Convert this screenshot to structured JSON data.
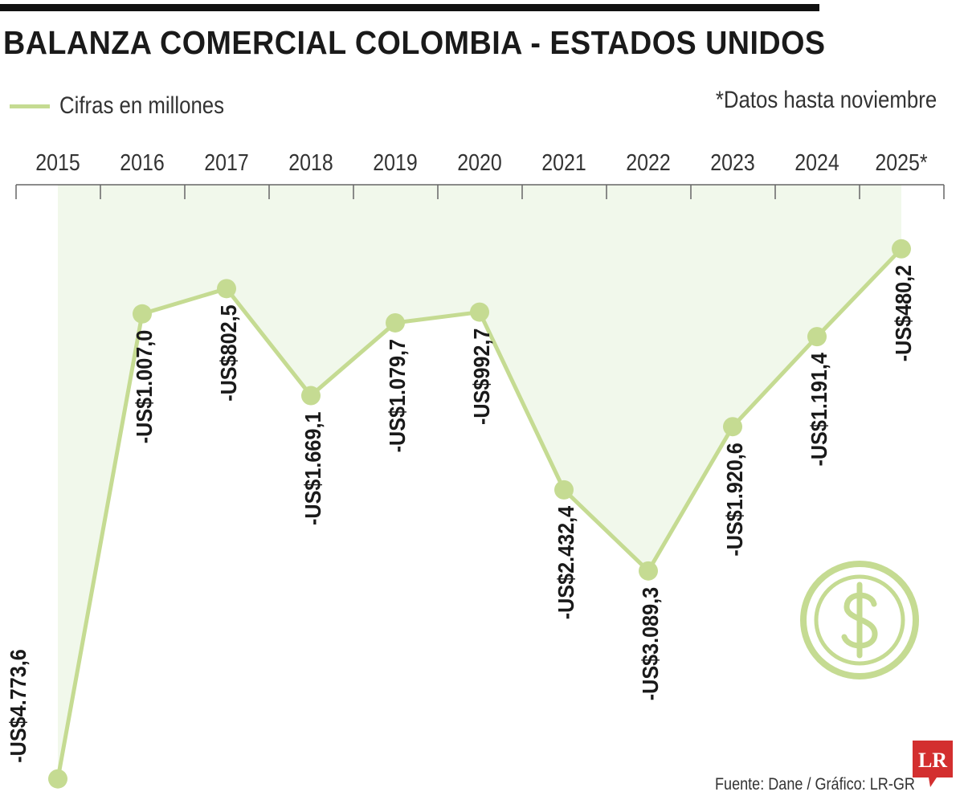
{
  "title": "BALANZA COMERCIAL COLOMBIA - ESTADOS UNIDOS",
  "legend": {
    "label": "Cifras en millones"
  },
  "note": "*Datos hasta noviembre",
  "source": "Fuente: Dane / Gráfico: LR-GR",
  "logo": {
    "text": "LR"
  },
  "icon": "dollar-circle-icon",
  "colors": {
    "line": "#c5db92",
    "fill": "#f1f8eb",
    "axis": "#666666",
    "label": "#1a1a1a",
    "logo": "#d32f2f"
  },
  "chart_data": {
    "type": "line",
    "categories": [
      "2015",
      "2016",
      "2017",
      "2018",
      "2019",
      "2020",
      "2021",
      "2022",
      "2023",
      "2024",
      "2025*"
    ],
    "values": [
      -4773.6,
      -1007.0,
      -802.5,
      -1669.1,
      -1079.7,
      -992.7,
      -2432.4,
      -3089.3,
      -1920.6,
      -1191.4,
      -480.2
    ],
    "value_labels": [
      "-US$4.773,6",
      "-US$1.007,0",
      "-US$802,5",
      "-US$1.669,1",
      "-US$1.079,7",
      "-US$992,7",
      "-US$2.432,4",
      "-US$3.089,3",
      "-US$1.920,6",
      "-US$1.191,4",
      "-US$480,2"
    ],
    "unit": "millones",
    "xaxis_position": "top",
    "grid": false
  }
}
